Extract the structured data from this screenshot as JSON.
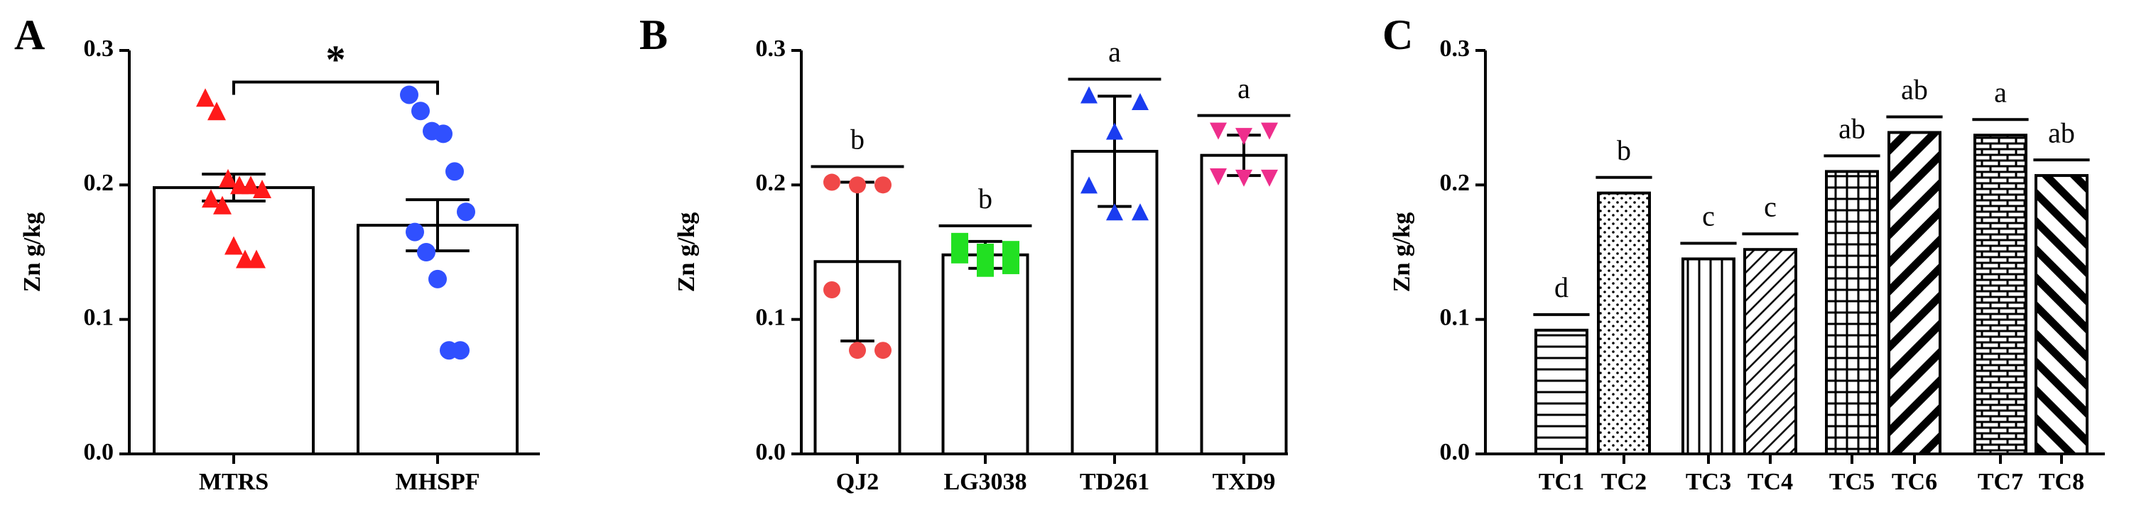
{
  "chart_data": [
    {
      "type": "bar",
      "panel_label": "A",
      "ylabel": "Zn g/kg",
      "categories": [
        "MTRS",
        "MHSPF"
      ],
      "values": [
        0.198,
        0.17
      ],
      "errors": [
        0.01,
        0.019
      ],
      "points": [
        [
          0.265,
          0.255,
          0.205,
          0.2,
          0.2,
          0.197,
          0.19,
          0.185,
          0.155,
          0.145,
          0.145
        ],
        [
          0.267,
          0.255,
          0.24,
          0.238,
          0.21,
          0.18,
          0.165,
          0.15,
          0.13,
          0.077,
          0.077
        ]
      ],
      "point_colors": [
        "#ff1a1a",
        "#3050ff"
      ],
      "point_shapes": [
        "triangle",
        "circle"
      ],
      "significance": "*",
      "ylim": [
        0,
        0.3
      ],
      "yticks": [
        {
          "value": 0,
          "label": "0.0"
        },
        0.1,
        0.2,
        0.3
      ]
    },
    {
      "type": "bar",
      "panel_label": "B",
      "ylabel": "Zn g/kg",
      "categories": [
        "QJ2",
        "LG3038",
        "TD261",
        "TXD9"
      ],
      "values": [
        0.143,
        0.148,
        0.225,
        0.222
      ],
      "errors": [
        0.059,
        0.01,
        0.041,
        0.015
      ],
      "points": [
        [
          0.202,
          0.2,
          0.2,
          0.122,
          0.077,
          0.077
        ],
        [
          0.158,
          0.152,
          0.15,
          0.148,
          0.14,
          0.138
        ],
        [
          0.267,
          0.262,
          0.24,
          0.2,
          0.18,
          0.18
        ],
        [
          0.24,
          0.24,
          0.236,
          0.206,
          0.205,
          0.205
        ]
      ],
      "point_colors": [
        "#f04848",
        "#22e022",
        "#1a3cf0",
        "#ee2e8c"
      ],
      "point_shapes": [
        "circle",
        "square",
        "triangle",
        "invtriangle"
      ],
      "letters": [
        "b",
        "b",
        "a",
        "a"
      ],
      "ylim": [
        0,
        0.3
      ],
      "yticks": [
        {
          "value": 0,
          "label": "0.0"
        },
        0.1,
        0.2,
        0.3
      ]
    },
    {
      "type": "bar",
      "panel_label": "C",
      "ylabel": "Zn g/kg",
      "categories": [
        "TC1",
        "TC2",
        "TC3",
        "TC4",
        "TC5",
        "TC6",
        "TC7",
        "TC8"
      ],
      "values": [
        0.092,
        0.194,
        0.145,
        0.152,
        0.21,
        0.239,
        0.237,
        0.207
      ],
      "patterns": [
        "hlines",
        "dots",
        "vlines",
        "diag",
        "grid",
        "thickdiag",
        "brick",
        "thickanti"
      ],
      "letters": [
        "d",
        "b",
        "c",
        "c",
        "ab",
        "ab",
        "a",
        "ab"
      ],
      "ylim": [
        0,
        0.3
      ],
      "yticks": [
        {
          "value": 0,
          "label": "0.0"
        },
        0.1,
        0.2,
        0.3
      ]
    }
  ]
}
